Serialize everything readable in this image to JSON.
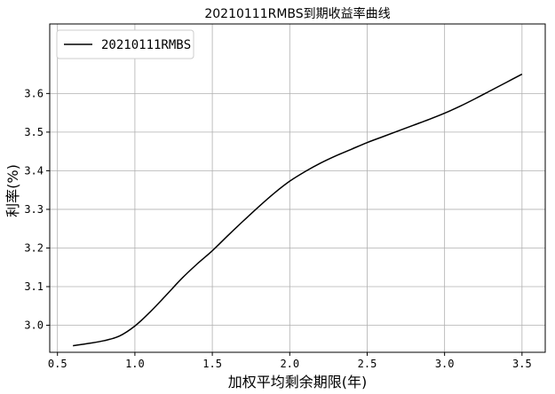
{
  "chart_data": {
    "type": "line",
    "title": "20210111RMBS到期收益率曲线",
    "xlabel": "加权平均剩余期限(年)",
    "ylabel": "利率(%)",
    "xlim": [
      0.45,
      3.65
    ],
    "ylim": [
      2.93,
      3.78
    ],
    "xticks": [
      0.5,
      1.0,
      1.5,
      2.0,
      2.5,
      3.0,
      3.5
    ],
    "xtick_labels": [
      "0.5",
      "1.0",
      "1.5",
      "2.0",
      "2.5",
      "3.0",
      "3.5"
    ],
    "yticks": [
      3.0,
      3.1,
      3.2,
      3.3,
      3.4,
      3.5,
      3.6
    ],
    "ytick_labels": [
      "3.0",
      "3.1",
      "3.2",
      "3.3",
      "3.4",
      "3.5",
      "3.6"
    ],
    "grid": true,
    "legend_position": "top-left",
    "series": [
      {
        "name": "20210111RMBS",
        "color": "#000000",
        "x": [
          0.6,
          0.7,
          0.8,
          0.9,
          1.0,
          1.1,
          1.2,
          1.3,
          1.4,
          1.5,
          1.6,
          1.7,
          1.8,
          1.9,
          2.0,
          2.1,
          2.2,
          2.3,
          2.4,
          2.5,
          2.6,
          2.7,
          2.8,
          2.9,
          3.0,
          3.1,
          3.2,
          3.3,
          3.4,
          3.5
        ],
        "y": [
          2.947,
          2.953,
          2.96,
          2.972,
          2.998,
          3.035,
          3.077,
          3.12,
          3.158,
          3.193,
          3.232,
          3.27,
          3.307,
          3.342,
          3.373,
          3.398,
          3.42,
          3.439,
          3.456,
          3.473,
          3.488,
          3.503,
          3.518,
          3.533,
          3.549,
          3.567,
          3.587,
          3.608,
          3.629,
          3.65
        ]
      }
    ]
  }
}
